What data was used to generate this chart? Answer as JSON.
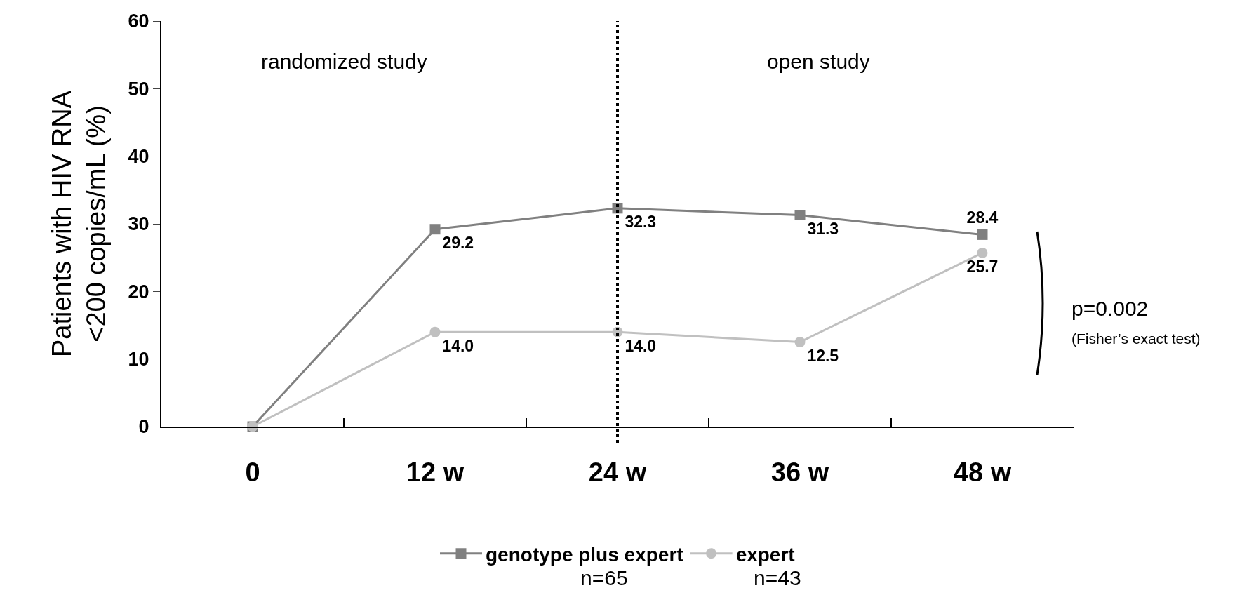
{
  "chart_data": {
    "type": "line",
    "categories": [
      "0",
      "12 w",
      "24 w",
      "36 w",
      "48 w"
    ],
    "ylabel": "Patients with HIV RNA\n<200 copies/mL (%)",
    "ylim": [
      0,
      60
    ],
    "yticks": [
      0,
      10,
      20,
      30,
      40,
      50,
      60
    ],
    "grid": false,
    "legend": "bottom",
    "series": [
      {
        "name": "genotype plus expert",
        "color": "#808080",
        "marker": "square",
        "values": [
          0,
          29.2,
          32.3,
          31.3,
          28.4
        ],
        "value_labels": [
          null,
          "29.2",
          "32.3",
          "31.3",
          "28.4"
        ]
      },
      {
        "name": "expert",
        "color": "#c0c0c0",
        "marker": "circle",
        "values": [
          0,
          14.0,
          14.0,
          12.5,
          25.7
        ],
        "value_labels": [
          null,
          "14.0",
          "14.0",
          "12.5",
          "25.7"
        ]
      }
    ],
    "ref_lines": [
      {
        "axis": "x",
        "value": "24 w",
        "color": "#000000",
        "line_style": "dotted"
      }
    ],
    "annotations": [
      "randomized study",
      "open study",
      "p=0.002",
      "(Fisher’s exact test)",
      "n=65",
      "n=43"
    ]
  }
}
